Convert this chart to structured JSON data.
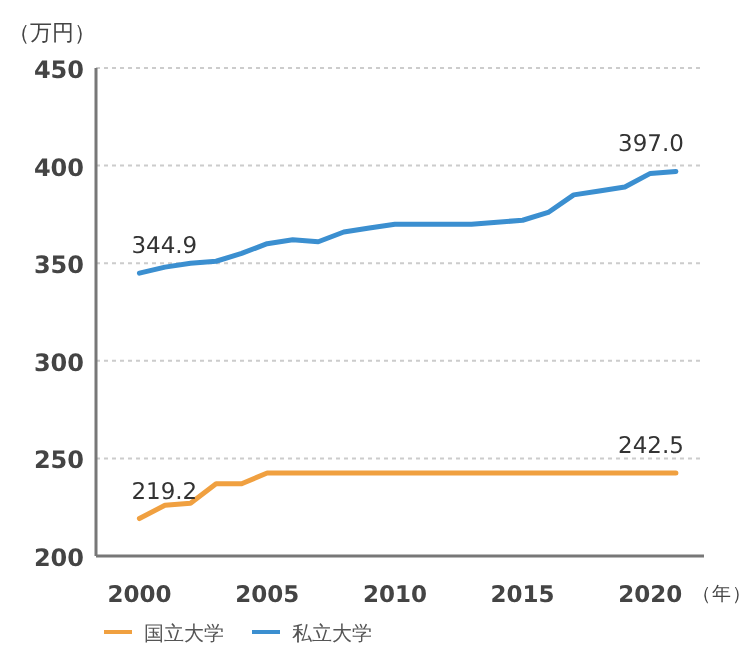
{
  "chart_data": {
    "type": "line",
    "ylabel": "（万円）",
    "xlabel": "（年）",
    "x": [
      2000,
      2001,
      2002,
      2003,
      2004,
      2005,
      2006,
      2007,
      2008,
      2009,
      2010,
      2011,
      2012,
      2013,
      2014,
      2015,
      2016,
      2017,
      2018,
      2019,
      2020,
      2021
    ],
    "series": [
      {
        "name": "国立大学",
        "color": "#f0a040",
        "values": [
          219.2,
          226,
          227,
          237,
          237,
          242.5,
          242.5,
          242.5,
          242.5,
          242.5,
          242.5,
          242.5,
          242.5,
          242.5,
          242.5,
          242.5,
          242.5,
          242.5,
          242.5,
          242.5,
          242.5,
          242.5
        ],
        "value_labels": [
          "219.2",
          null,
          null,
          null,
          null,
          null,
          null,
          null,
          null,
          null,
          null,
          null,
          null,
          null,
          null,
          null,
          null,
          null,
          null,
          null,
          null,
          "242.5"
        ]
      },
      {
        "name": "私立大学",
        "color": "#3b8fd0",
        "values": [
          344.9,
          348,
          350,
          351,
          355,
          360,
          362,
          361,
          366,
          368,
          370,
          370,
          370,
          370,
          371,
          372,
          376,
          385,
          387,
          389,
          396,
          397.0
        ],
        "value_labels": [
          "344.9",
          null,
          null,
          null,
          null,
          null,
          null,
          null,
          null,
          null,
          null,
          null,
          null,
          null,
          null,
          null,
          null,
          null,
          null,
          null,
          null,
          "397.0"
        ]
      }
    ],
    "xlim": [
      1998.3,
      2022.1
    ],
    "xticks": [
      2000,
      2005,
      2010,
      2015,
      2020
    ],
    "ylim": [
      200,
      450
    ],
    "yticks": [
      200,
      250,
      300,
      350,
      400,
      450
    ],
    "grid": "y",
    "legend": "bottom left",
    "marker": "none",
    "line_style": "solid"
  }
}
